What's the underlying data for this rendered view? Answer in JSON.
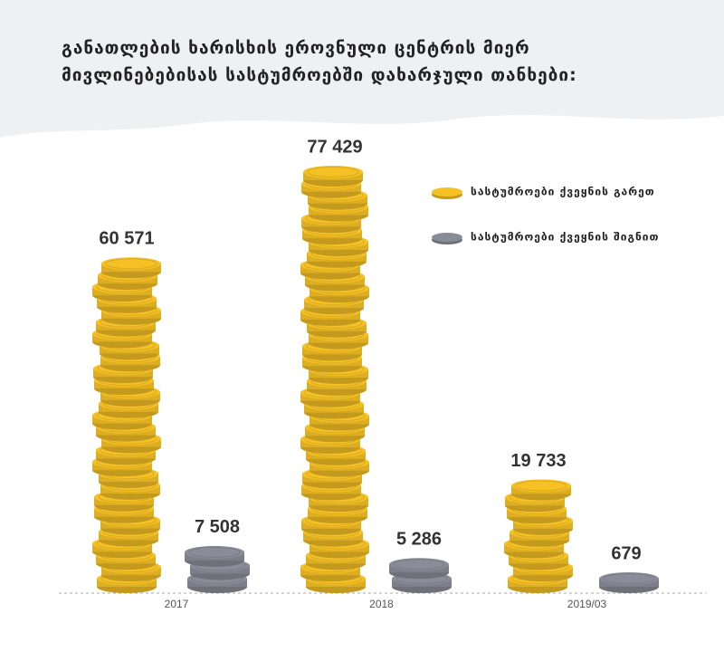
{
  "chart_data": {
    "type": "coin-bar",
    "title": "განათლების ხარისხის ეროვნული ცენტრის მიერ მივლინებებისას სასტუმროებში დახარჯული თანხები:",
    "categories": [
      "2017",
      "2018",
      "2019/03"
    ],
    "series": [
      {
        "name": "სასტუმროები ქვეყნის გარეთ",
        "color": "#f5c125",
        "values": [
          60571,
          77429,
          19733
        ],
        "value_labels": [
          "60 571",
          "77 429",
          "19 733"
        ]
      },
      {
        "name": "სასტუმროები ქვეყნის შიგნით",
        "color": "#8a8d99",
        "values": [
          7508,
          5286,
          679
        ],
        "value_labels": [
          "7 508",
          "5 286",
          "679"
        ]
      }
    ]
  }
}
